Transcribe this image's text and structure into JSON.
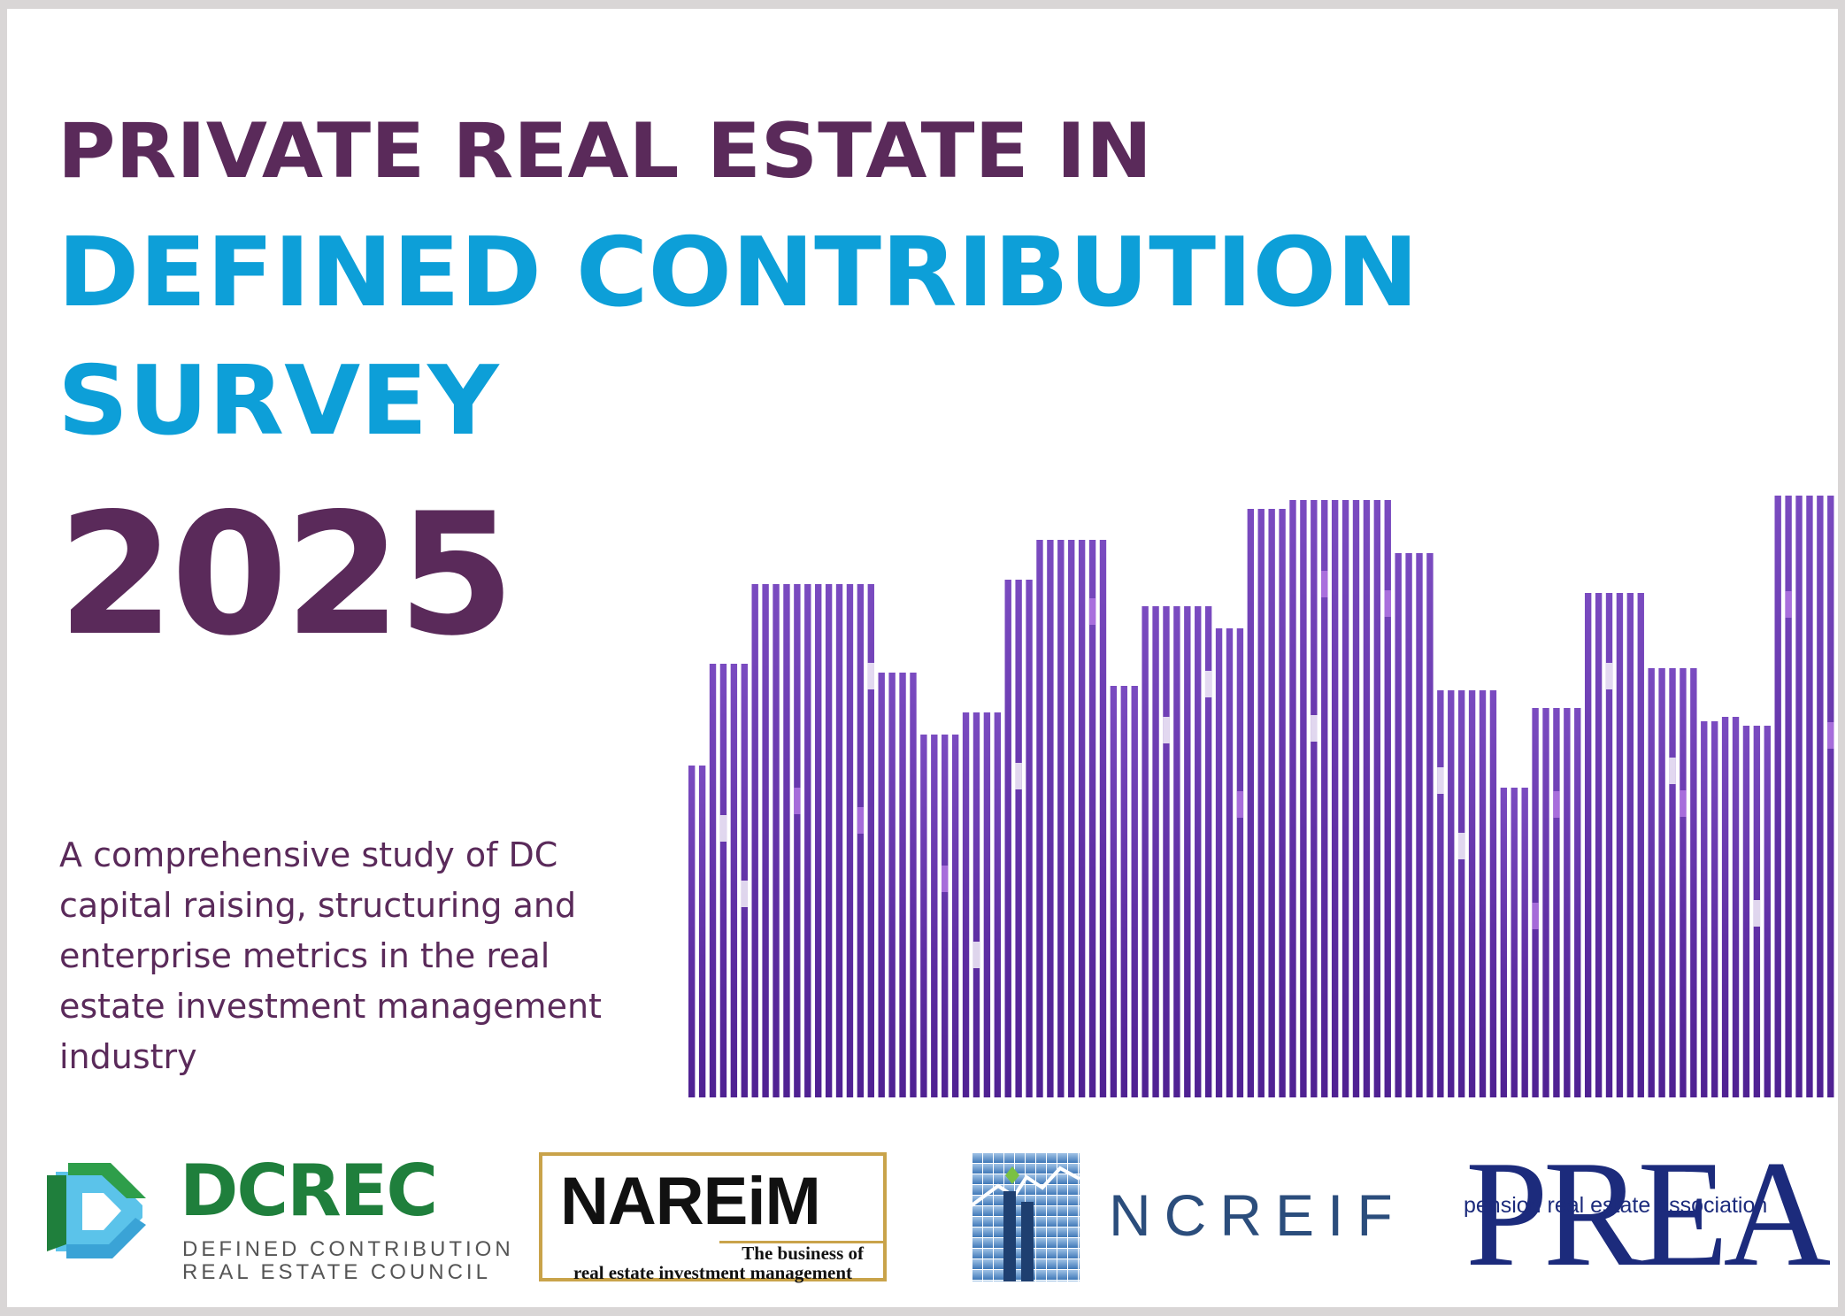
{
  "title": {
    "line1": "PRIVATE REAL ESTATE IN",
    "line2": "DEFINED CONTRIBUTION",
    "line3": "SURVEY",
    "year": "2025"
  },
  "description": "A comprehensive study of DC capital raising, structuring and enterprise metrics in the real estate investment management industry",
  "colors": {
    "purple": "#5a2a5a",
    "blue": "#0d9fd8",
    "bar_purple": "#5b2aa0",
    "green": "#1f7f3c",
    "gold": "#c9a34a",
    "navy": "#1c2b7c"
  },
  "logos": {
    "dcrec": {
      "abbr": "DCREC",
      "line1": "DEFINED CONTRIBUTION",
      "line2": "REAL ESTATE COUNCIL",
      "icon": "dcrec-d-icon"
    },
    "nareim": {
      "name": "NAREiM",
      "tagline1": "The business of",
      "tagline2": "real estate investment management"
    },
    "ncreif": {
      "name": "NCREIF",
      "icon": "ncreif-building-icon"
    },
    "prea": {
      "big": "PREA",
      "small": "pension real estate association"
    }
  }
}
